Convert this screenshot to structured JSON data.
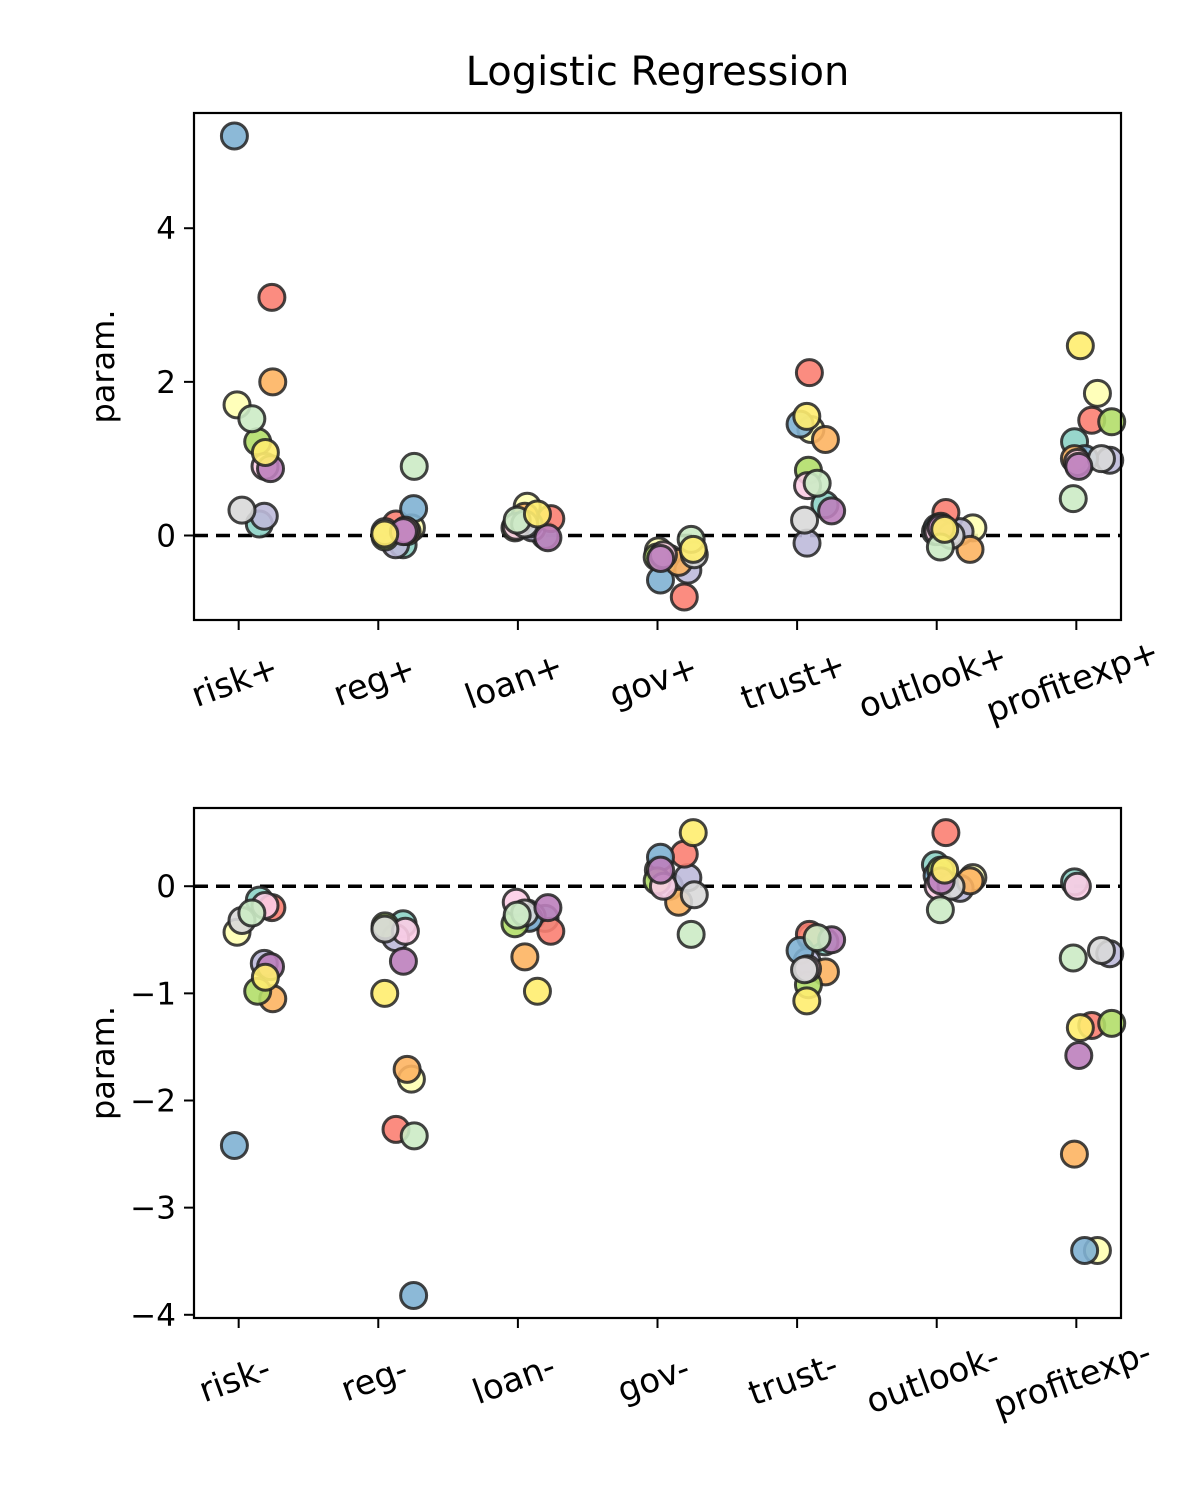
{
  "chart_data": [
    {
      "type": "strip",
      "title": "Logistic Regression",
      "ylabel": "param.",
      "categories": [
        "risk+",
        "reg+",
        "loan+",
        "gov+",
        "trust+",
        "outlook+",
        "profitexp+"
      ],
      "ylim": [
        -1.1,
        5.5
      ],
      "yticks": [
        0,
        2,
        4
      ],
      "hline": 0,
      "series": [
        {
          "color": "#8dd3c7",
          "values": [
            0.15,
            -0.12,
            0.0,
            -0.3,
            0.4,
            0.05,
            1.22
          ]
        },
        {
          "color": "#ffffb3",
          "values": [
            1.7,
            0.1,
            0.38,
            -0.2,
            1.38,
            0.1,
            1.85
          ]
        },
        {
          "color": "#bebada",
          "values": [
            0.25,
            -0.12,
            0.1,
            -0.45,
            -0.1,
            0.05,
            0.98
          ]
        },
        {
          "color": "#fb8072",
          "values": [
            3.1,
            0.15,
            0.22,
            -0.8,
            2.12,
            0.3,
            1.5
          ]
        },
        {
          "color": "#80b1d3",
          "values": [
            5.2,
            0.35,
            0.15,
            -0.58,
            1.45,
            0.1,
            1.0
          ]
        },
        {
          "color": "#fdb462",
          "values": [
            2.0,
            0.05,
            0.25,
            -0.35,
            1.25,
            -0.18,
            1.0
          ]
        },
        {
          "color": "#b3de69",
          "values": [
            1.22,
            -0.02,
            0.1,
            -0.28,
            0.85,
            0.12,
            1.48
          ]
        },
        {
          "color": "#fccde5",
          "values": [
            0.9,
            0.07,
            0.12,
            -0.25,
            0.65,
            0.05,
            0.95
          ]
        },
        {
          "color": "#d9d9d9",
          "values": [
            0.33,
            0.05,
            0.15,
            -0.25,
            0.2,
            0.0,
            1.0
          ]
        },
        {
          "color": "#bc80bd",
          "values": [
            0.87,
            0.05,
            -0.03,
            -0.3,
            0.32,
            0.1,
            0.9
          ]
        },
        {
          "color": "#ccebc5",
          "values": [
            1.52,
            0.9,
            0.2,
            -0.05,
            0.68,
            -0.15,
            0.48
          ]
        },
        {
          "color": "#ffed6f",
          "values": [
            1.08,
            0.02,
            0.28,
            -0.18,
            1.55,
            0.08,
            2.47
          ]
        }
      ]
    },
    {
      "type": "strip",
      "ylabel": "param.",
      "categories": [
        "risk-",
        "reg-",
        "loan-",
        "gov-",
        "trust-",
        "outlook-",
        "profitexp-"
      ],
      "ylim": [
        -4.03,
        0.73
      ],
      "yticks": [
        {
          "value": -4,
          "label": "−4"
        },
        {
          "value": -3,
          "label": "−3"
        },
        {
          "value": -2,
          "label": "−2"
        },
        {
          "value": -1,
          "label": "−1"
        },
        0
      ],
      "hline": 0,
      "series": [
        {
          "color": "#8dd3c7",
          "values": [
            -0.13,
            -0.35,
            -0.3,
            0.0,
            -0.52,
            0.2,
            0.04
          ]
        },
        {
          "color": "#ffffb3",
          "values": [
            -0.43,
            -1.8,
            -0.25,
            0.15,
            -0.48,
            0.08,
            -3.4
          ]
        },
        {
          "color": "#bebada",
          "values": [
            -0.72,
            -0.48,
            -0.28,
            0.08,
            -0.7,
            -0.02,
            -0.63
          ]
        },
        {
          "color": "#fb8072",
          "values": [
            -0.2,
            -2.27,
            -0.42,
            0.3,
            -0.45,
            0.5,
            -1.3
          ]
        },
        {
          "color": "#80b1d3",
          "values": [
            -2.42,
            -3.82,
            -0.3,
            0.27,
            -0.6,
            0.1,
            -3.4
          ]
        },
        {
          "color": "#fdb462",
          "values": [
            -1.05,
            -1.71,
            -0.66,
            -0.15,
            -0.8,
            0.05,
            -2.5
          ]
        },
        {
          "color": "#b3de69",
          "values": [
            -0.98,
            -0.37,
            -0.35,
            0.05,
            -0.92,
            0.15,
            -1.28
          ]
        },
        {
          "color": "#fccde5",
          "values": [
            -0.18,
            -0.42,
            -0.15,
            0.0,
            -0.77,
            0.0,
            0.0
          ]
        },
        {
          "color": "#d9d9d9",
          "values": [
            -0.32,
            -0.4,
            -0.25,
            -0.08,
            -0.78,
            0.0,
            -0.6
          ]
        },
        {
          "color": "#bc80bd",
          "values": [
            -0.75,
            -0.7,
            -0.2,
            0.15,
            -0.5,
            0.05,
            -1.58
          ]
        },
        {
          "color": "#ccebc5",
          "values": [
            -0.25,
            -2.33,
            -0.27,
            -0.45,
            -0.48,
            -0.22,
            -0.67
          ]
        },
        {
          "color": "#ffed6f",
          "values": [
            -0.85,
            -1.0,
            -0.98,
            0.5,
            -1.07,
            0.15,
            -1.32
          ]
        }
      ]
    }
  ]
}
